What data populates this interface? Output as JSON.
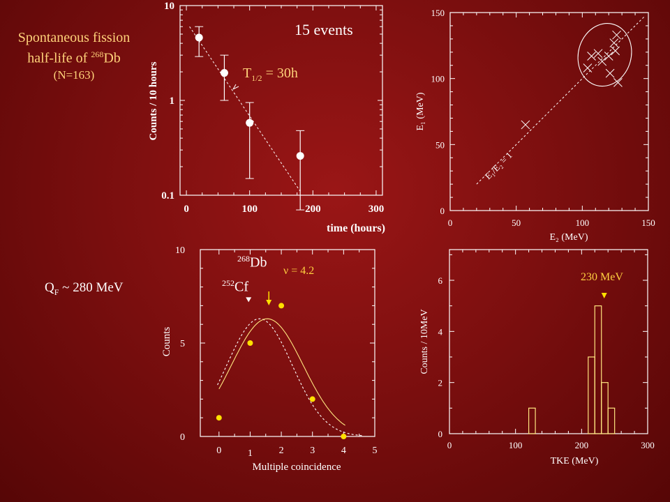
{
  "slide": {
    "title_line1": "Spontaneous fission",
    "title_line2_prefix": "half-life of ",
    "title_line2_sup": "268",
    "title_line2_suffix": "Db",
    "title_line3": "(N=163)",
    "events": "15 events",
    "halflife_T": "T",
    "halflife_sub": "1/2",
    "halflife_value": " = 30h",
    "qf_prefix": "Q",
    "qf_sub": "F",
    "qf_value": " ~ 280 MeV",
    "db_sup": "268",
    "db_label": "Db",
    "cf_sup": "252",
    "cf_label": "Cf",
    "nu_label": "ν = 4.2",
    "tke_peak_label": "230 MeV",
    "colors": {
      "background": "#7d0f0f",
      "title_text": "#ffd27a",
      "db_curve": "#ffe680",
      "markers": "#ffe000"
    }
  },
  "chart_data": [
    {
      "id": "decay",
      "type": "scatter",
      "xlabel": "time (hours)",
      "ylabel": "Counts / 10 hours",
      "x_ticks": [
        "0",
        "100",
        "200",
        "300"
      ],
      "y_ticks": [
        "0.1",
        "1",
        "10"
      ],
      "xlim": [
        -10,
        310
      ],
      "ylim": [
        0.1,
        10
      ],
      "y_scale": "log",
      "points": [
        {
          "x": 20,
          "y": 4.6,
          "ylo": 2.9,
          "yhi": 6.0
        },
        {
          "x": 60,
          "y": 1.95,
          "ylo": 1.0,
          "yhi": 3.0
        },
        {
          "x": 100,
          "y": 0.58,
          "ylo": 0.15,
          "yhi": 0.95
        },
        {
          "x": 180,
          "y": 0.26,
          "ylo": 0.07,
          "yhi": 0.48
        }
      ],
      "fit_line": [
        {
          "x": 5,
          "y": 6.0
        },
        {
          "x": 180,
          "y": 0.11
        }
      ]
    },
    {
      "id": "energy",
      "type": "scatter",
      "xlabel": "E₂ (MeV)",
      "ylabel": "E₁ (MeV)",
      "diag_label": "E₁/E₂ = 1",
      "x_ticks": [
        "0",
        "50",
        "100",
        "150"
      ],
      "y_ticks": [
        "0",
        "50",
        "100",
        "150"
      ],
      "xlim": [
        0,
        150
      ],
      "ylim": [
        0,
        150
      ],
      "points": [
        {
          "x": 57,
          "y": 65
        },
        {
          "x": 104,
          "y": 108
        },
        {
          "x": 107,
          "y": 117
        },
        {
          "x": 112,
          "y": 119
        },
        {
          "x": 115,
          "y": 113
        },
        {
          "x": 120,
          "y": 117
        },
        {
          "x": 125,
          "y": 121
        },
        {
          "x": 124,
          "y": 127
        },
        {
          "x": 126,
          "y": 133
        },
        {
          "x": 121,
          "y": 104
        },
        {
          "x": 127,
          "y": 97
        }
      ],
      "ellipse": {
        "cx": 117,
        "cy": 118,
        "rx": 20,
        "ry": 24,
        "rot_deg": 15
      }
    },
    {
      "id": "multiplicity",
      "type": "scatter",
      "xlabel": "Multiple coincidence",
      "ylabel": "Counts",
      "x_ticks": [
        "0",
        "1",
        "2",
        "3",
        "4",
        "5"
      ],
      "y_ticks": [
        "0",
        "5",
        "10"
      ],
      "xlim": [
        -0.6,
        5
      ],
      "ylim": [
        0,
        10
      ],
      "points": [
        {
          "x": 0,
          "y": 1
        },
        {
          "x": 1,
          "y": 5
        },
        {
          "x": 2,
          "y": 7
        },
        {
          "x": 3,
          "y": 2
        },
        {
          "x": 4,
          "y": 0
        }
      ],
      "db_curve": {
        "mean": 1.55,
        "sigma": 1.15,
        "amp": 6.3
      },
      "cf_curve": {
        "mean": 1.3,
        "sigma": 1.05,
        "amp": 6.3
      },
      "db_arrow_x": 1.6,
      "cf_marker_x": 0.95
    },
    {
      "id": "tke",
      "type": "bar",
      "xlabel": "TKE (MeV)",
      "ylabel": "Counts / 10MeV",
      "x_ticks": [
        "0",
        "100",
        "200",
        "300"
      ],
      "y_ticks": [
        "0",
        "2",
        "4",
        "6"
      ],
      "xlim": [
        0,
        300
      ],
      "ylim": [
        0,
        7.2
      ],
      "bins": [
        {
          "x0": 120,
          "x1": 130,
          "count": 1
        },
        {
          "x0": 210,
          "x1": 220,
          "count": 3
        },
        {
          "x0": 220,
          "x1": 230,
          "count": 5
        },
        {
          "x0": 230,
          "x1": 240,
          "count": 2
        },
        {
          "x0": 240,
          "x1": 250,
          "count": 1
        }
      ],
      "peak_marker_x": 230
    }
  ]
}
